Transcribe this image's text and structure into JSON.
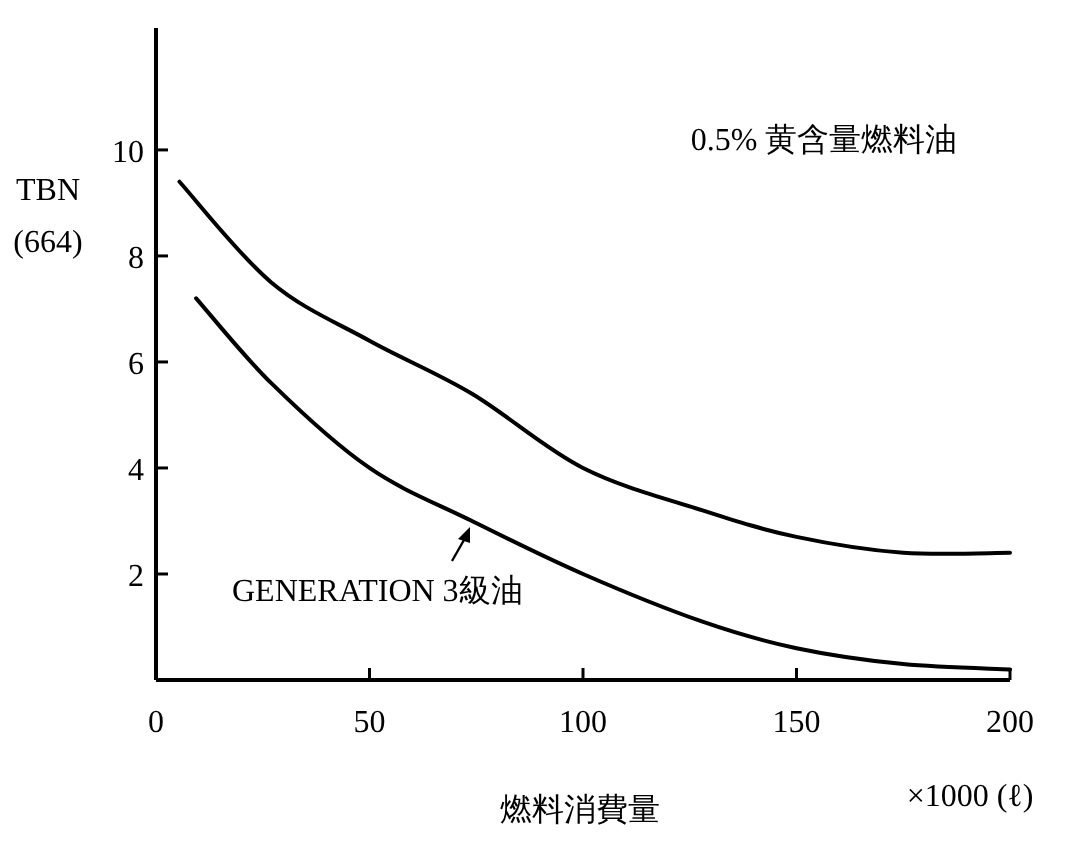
{
  "chart_data": {
    "type": "line",
    "xlabel": "燃料消費量",
    "ylabel": "TBN (664)",
    "annotations": [
      "0.5% 黄含量燃料油",
      "×1000 (ℓ)"
    ],
    "xlim": [
      0,
      200
    ],
    "ylim": [
      0,
      12.3
    ],
    "xticks": [
      0,
      50,
      100,
      150,
      200
    ],
    "yticks": [
      2,
      4,
      6,
      8,
      10
    ],
    "series": [
      {
        "color": "#000000",
        "x": [
          5.5,
          27,
          50,
          74,
          100,
          128,
          150,
          175,
          200
        ],
        "values": [
          9.4,
          7.5,
          6.4,
          5.4,
          4.0,
          3.2,
          2.7,
          2.4,
          2.4
        ]
      },
      {
        "name": "GENERATION 3級油",
        "color": "#000000",
        "x": [
          9.4,
          27,
          50,
          74,
          100,
          128,
          150,
          175,
          200
        ],
        "values": [
          7.2,
          5.6,
          4.0,
          3.0,
          2.0,
          1.1,
          0.6,
          0.3,
          0.2
        ]
      }
    ]
  }
}
